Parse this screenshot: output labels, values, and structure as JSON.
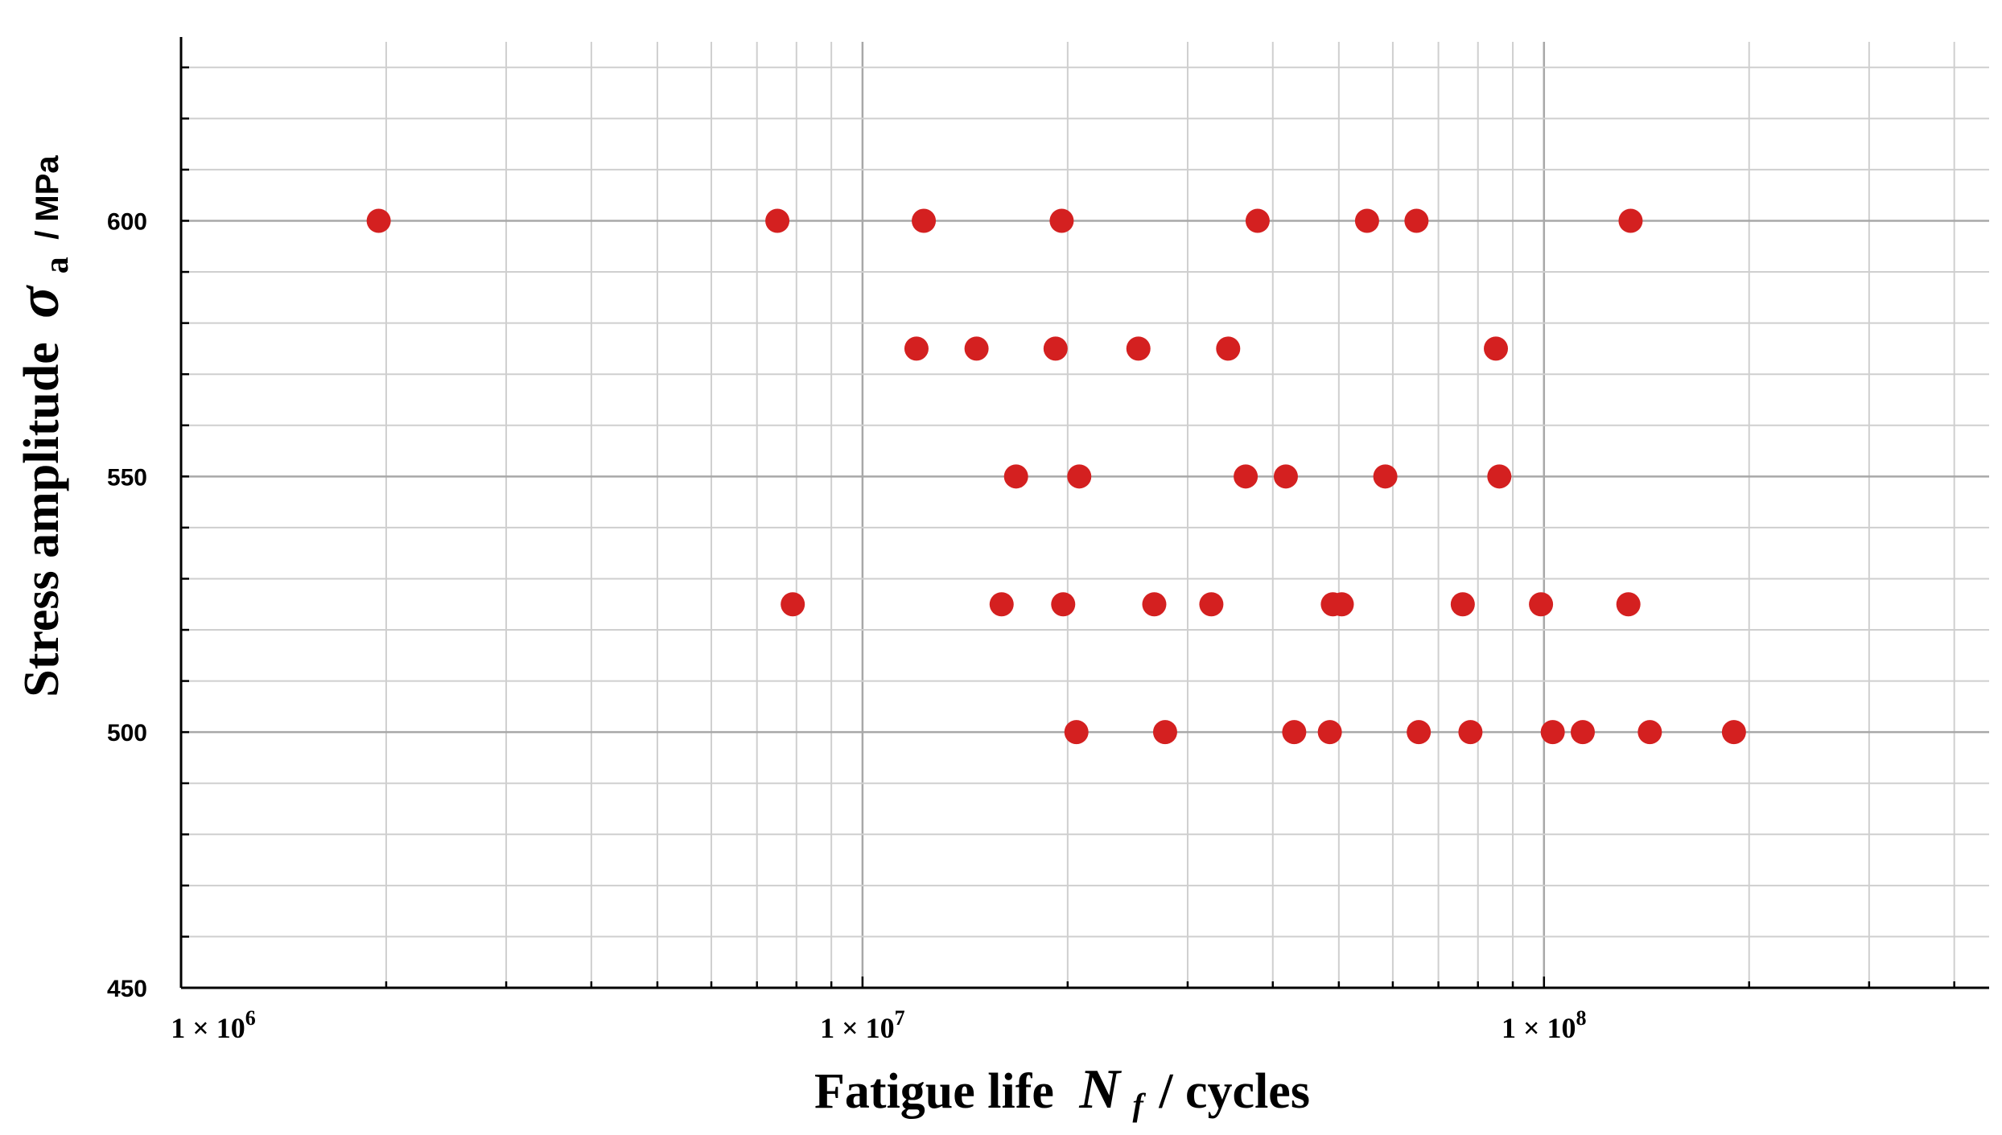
{
  "chart_data": {
    "type": "scatter",
    "title": "",
    "xlabel": {
      "text": "Fatigue life",
      "symbol": "N",
      "subscript": "f",
      "unit": "/ cycles"
    },
    "ylabel": {
      "text": "Stress amplitude",
      "symbol": "σ",
      "subscript": "a",
      "unit": "/ MPa"
    },
    "x_scale": "log",
    "xlim": [
      1000000,
      450000000
    ],
    "ylim": [
      450,
      635
    ],
    "x_tick_labels": [
      {
        "value": 1000000,
        "mantissa": "1 × 10",
        "exp": "6"
      },
      {
        "value": 10000000,
        "mantissa": "1 × 10",
        "exp": "7"
      },
      {
        "value": 100000000,
        "mantissa": "1 × 10",
        "exp": "8"
      }
    ],
    "y_ticks": [
      {
        "value": 450,
        "label": "450"
      },
      {
        "value": 500,
        "label": "500"
      },
      {
        "value": 550,
        "label": "550"
      },
      {
        "value": 600,
        "label": "600"
      }
    ],
    "grid": true,
    "marker_color": "#d42020",
    "series": [
      {
        "points": [
          {
            "x": 1950000,
            "y": 600
          },
          {
            "x": 7500000,
            "y": 600
          },
          {
            "x": 12300000,
            "y": 600
          },
          {
            "x": 19600000,
            "y": 600
          },
          {
            "x": 38000000,
            "y": 600
          },
          {
            "x": 55000000,
            "y": 600
          },
          {
            "x": 65000000,
            "y": 600
          },
          {
            "x": 134000000,
            "y": 600
          },
          {
            "x": 12000000,
            "y": 575
          },
          {
            "x": 14700000,
            "y": 575
          },
          {
            "x": 19200000,
            "y": 575
          },
          {
            "x": 25400000,
            "y": 575
          },
          {
            "x": 34400000,
            "y": 575
          },
          {
            "x": 85000000,
            "y": 575
          },
          {
            "x": 16800000,
            "y": 550
          },
          {
            "x": 20800000,
            "y": 550
          },
          {
            "x": 36500000,
            "y": 550
          },
          {
            "x": 41800000,
            "y": 550
          },
          {
            "x": 58500000,
            "y": 550
          },
          {
            "x": 86000000,
            "y": 550
          },
          {
            "x": 7900000,
            "y": 525
          },
          {
            "x": 16000000,
            "y": 525
          },
          {
            "x": 19700000,
            "y": 525
          },
          {
            "x": 26800000,
            "y": 525
          },
          {
            "x": 32500000,
            "y": 525
          },
          {
            "x": 49000000,
            "y": 525
          },
          {
            "x": 50500000,
            "y": 525
          },
          {
            "x": 76000000,
            "y": 525
          },
          {
            "x": 99000000,
            "y": 525
          },
          {
            "x": 133000000,
            "y": 525
          },
          {
            "x": 20600000,
            "y": 500
          },
          {
            "x": 27800000,
            "y": 500
          },
          {
            "x": 43000000,
            "y": 500
          },
          {
            "x": 48500000,
            "y": 500
          },
          {
            "x": 65500000,
            "y": 500
          },
          {
            "x": 78000000,
            "y": 500
          },
          {
            "x": 103000000,
            "y": 500
          },
          {
            "x": 114000000,
            "y": 500
          },
          {
            "x": 143000000,
            "y": 500
          },
          {
            "x": 190000000,
            "y": 500
          }
        ]
      }
    ]
  }
}
